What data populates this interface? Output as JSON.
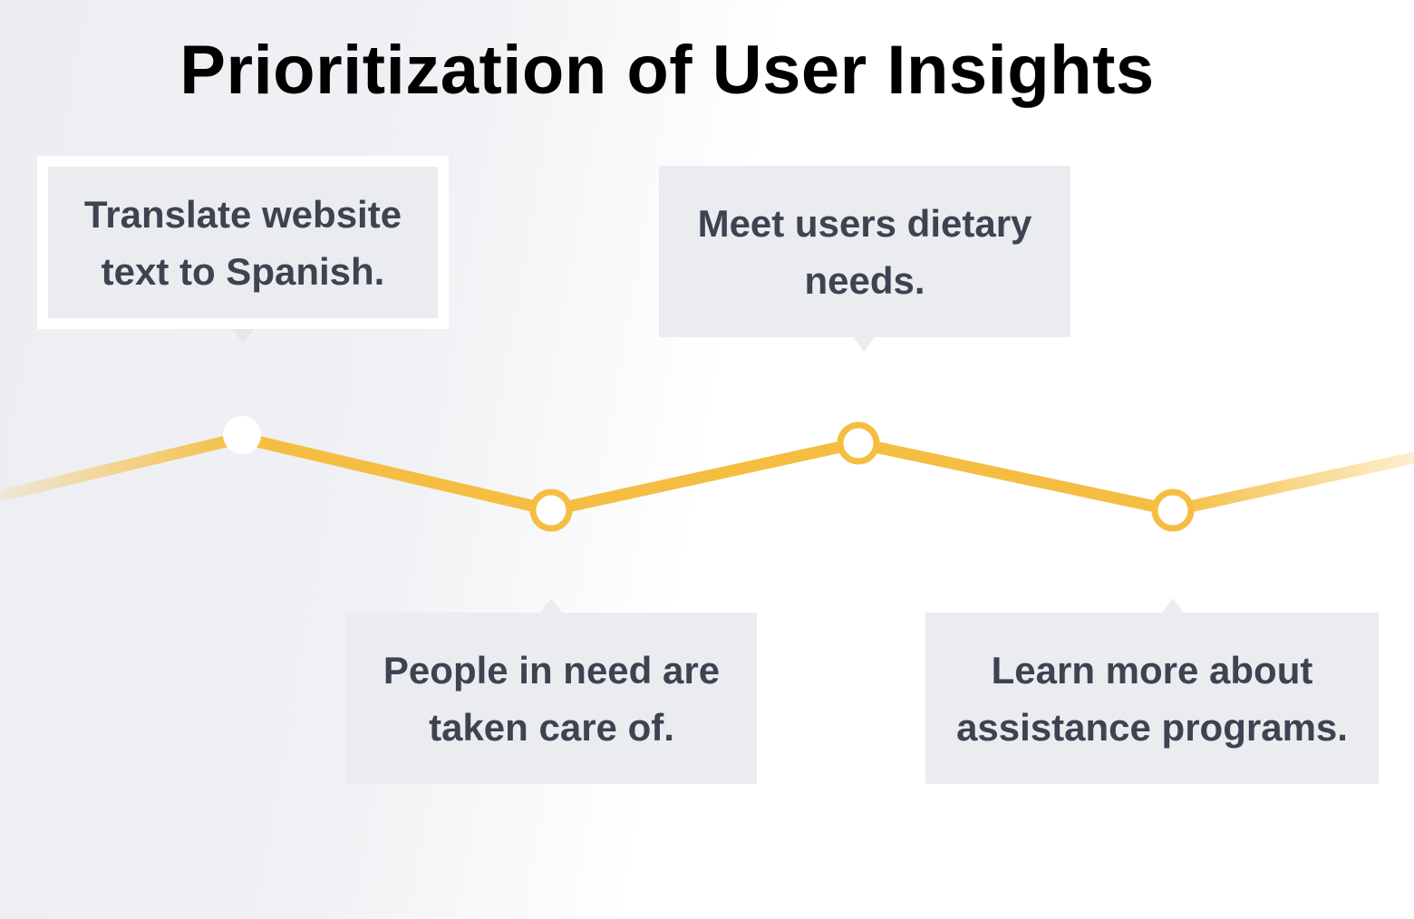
{
  "title": "Prioritization of User Insights",
  "colors": {
    "line": "#f5be42",
    "callout_bg": "#ebecf0",
    "callout_text": "#3d4350",
    "title_text": "#000000"
  },
  "insights": [
    {
      "label": "Translate website text to Spanish.",
      "selected": true
    },
    {
      "label": "People in need are taken care of.",
      "selected": false
    },
    {
      "label": "Meet users dietary needs.",
      "selected": false
    },
    {
      "label": "Learn more about assistance programs.",
      "selected": false
    }
  ]
}
